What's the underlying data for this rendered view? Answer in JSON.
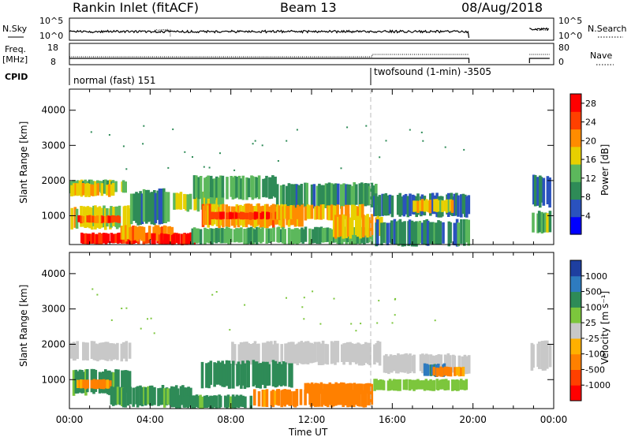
{
  "header": {
    "radar_label": "Rankin Inlet (fitACF)",
    "beam_label": "Beam 13",
    "date_label": "08/Aug/2018"
  },
  "panels": {
    "nsky": {
      "left_label": "N.Sky",
      "left_ticks": [
        "10^5",
        "10^0"
      ],
      "right_label": "N.Search",
      "right_ticks": [
        "10^5",
        "10^0"
      ]
    },
    "freq": {
      "left_label": "Freq.",
      "left_unit": "[MHz]",
      "left_ticks": [
        "18",
        "8"
      ],
      "right_label": "Nave",
      "right_ticks": [
        "80",
        "0"
      ]
    },
    "cpid": {
      "label": "CPID",
      "modes": [
        {
          "name": "normal (fast) 151",
          "start_hour": 0,
          "end_hour": 15
        },
        {
          "name": "twofsound (1-min) -3505",
          "start_hour": 15,
          "end_hour": 24
        }
      ]
    }
  },
  "chart_data": [
    {
      "type": "heatmap",
      "name": "power",
      "xlabel": "",
      "ylabel": "Slant Range [km]",
      "x_range_hours": [
        0,
        24
      ],
      "ylim": [
        180,
        4600
      ],
      "yticks": [
        "1000",
        "2000",
        "3000",
        "4000"
      ],
      "colorbar": {
        "label": "Power [dB]",
        "ticks": [
          "4",
          "8",
          "12",
          "16",
          "20",
          "24",
          "28"
        ],
        "range": [
          0,
          30
        ],
        "colors": [
          "#0000ff",
          "#2a52be",
          "#2e8b57",
          "#5cb85c",
          "#e8d000",
          "#ff8c00",
          "#ff4000",
          "#ff0000"
        ]
      },
      "data_gaps_hours": [
        [
          19.8,
          22.8
        ]
      ],
      "bands": [
        {
          "t0": 0.0,
          "t1": 2.8,
          "r0": 1650,
          "r1": 2000,
          "v": 13
        },
        {
          "t0": 0.0,
          "t1": 2.2,
          "r0": 1550,
          "r1": 1900,
          "v": 18
        },
        {
          "t0": 0.0,
          "t1": 3.0,
          "r0": 650,
          "r1": 1250,
          "v": 16
        },
        {
          "t0": 0.3,
          "t1": 2.5,
          "r0": 800,
          "r1": 1000,
          "v": 24
        },
        {
          "t0": 0.5,
          "t1": 6.2,
          "r0": 200,
          "r1": 500,
          "v": 27
        },
        {
          "t0": 2.5,
          "t1": 5.2,
          "r0": 300,
          "r1": 700,
          "v": 21
        },
        {
          "t0": 4.0,
          "t1": 6.2,
          "r0": 180,
          "r1": 480,
          "v": 29
        },
        {
          "t0": 3.0,
          "t1": 5.0,
          "r0": 800,
          "r1": 1700,
          "v": 9
        },
        {
          "t0": 5.0,
          "t1": 7.6,
          "r0": 1150,
          "r1": 1650,
          "v": 15
        },
        {
          "t0": 6.0,
          "t1": 10.2,
          "r0": 1500,
          "r1": 2100,
          "v": 12
        },
        {
          "t0": 6.5,
          "t1": 11.5,
          "r0": 700,
          "r1": 1300,
          "v": 20
        },
        {
          "t0": 7.0,
          "t1": 10.5,
          "r0": 900,
          "r1": 1100,
          "v": 25
        },
        {
          "t0": 6.0,
          "t1": 15.0,
          "r0": 220,
          "r1": 650,
          "v": 12
        },
        {
          "t0": 10.2,
          "t1": 15.2,
          "r0": 1250,
          "r1": 1900,
          "v": 10
        },
        {
          "t0": 10.0,
          "t1": 14.5,
          "r0": 900,
          "r1": 1300,
          "v": 19
        },
        {
          "t0": 13.0,
          "t1": 15.5,
          "r0": 400,
          "r1": 1000,
          "v": 18
        },
        {
          "t0": 15.0,
          "t1": 19.8,
          "r0": 1000,
          "r1": 1600,
          "v": 8
        },
        {
          "t0": 17.0,
          "t1": 19.0,
          "r0": 1100,
          "r1": 1450,
          "v": 17
        },
        {
          "t0": 15.0,
          "t1": 19.8,
          "r0": 180,
          "r1": 850,
          "v": 9
        },
        {
          "t0": 22.8,
          "t1": 23.8,
          "r0": 1300,
          "r1": 2100,
          "v": 7
        },
        {
          "t0": 22.8,
          "t1": 23.8,
          "r0": 500,
          "r1": 1100,
          "v": 13
        }
      ]
    },
    {
      "type": "heatmap",
      "name": "velocity",
      "xlabel": "Time UT",
      "ylabel": "Slant Range [km]",
      "x_range_hours": [
        0,
        24
      ],
      "xticks": [
        "00:00",
        "04:00",
        "08:00",
        "12:00",
        "16:00",
        "20:00",
        "00:00"
      ],
      "ylim": [
        180,
        4600
      ],
      "yticks": [
        "1000",
        "2000",
        "3000",
        "4000"
      ],
      "colorbar": {
        "label": "Velocity [m s⁻¹]",
        "ticks": [
          "1000",
          "500",
          "100",
          "25",
          "-25",
          "-100",
          "-500",
          "-1000"
        ],
        "colors": [
          "#1e3fa0",
          "#2e7bbf",
          "#2e8b57",
          "#7cc63c",
          "#c8c8c8",
          "#ffb000",
          "#ff8000",
          "#ff4000",
          "#ff0000"
        ]
      },
      "data_gaps_hours": [
        [
          19.8,
          22.8
        ]
      ],
      "bands": [
        {
          "t0": 0.0,
          "t1": 3.0,
          "r0": 1550,
          "r1": 2050,
          "v": 0
        },
        {
          "t0": 8.0,
          "t1": 15.5,
          "r0": 1450,
          "r1": 2050,
          "v": 0
        },
        {
          "t0": 15.5,
          "t1": 19.8,
          "r0": 1200,
          "r1": 1700,
          "v": 0
        },
        {
          "t0": 22.8,
          "t1": 23.8,
          "r0": 1300,
          "r1": 2050,
          "v": 0
        },
        {
          "t0": 0.0,
          "t1": 3.0,
          "r0": 600,
          "r1": 1250,
          "v": 150
        },
        {
          "t0": 0.3,
          "t1": 2.0,
          "r0": 750,
          "r1": 1000,
          "v": -150
        },
        {
          "t0": 2.0,
          "t1": 6.0,
          "r0": 250,
          "r1": 800,
          "v": 150
        },
        {
          "t0": 6.5,
          "t1": 11.0,
          "r0": 800,
          "r1": 1500,
          "v": 200
        },
        {
          "t0": 5.0,
          "t1": 9.0,
          "r0": 200,
          "r1": 550,
          "v": 150
        },
        {
          "t0": 9.0,
          "t1": 15.0,
          "r0": 250,
          "r1": 700,
          "v": -150
        },
        {
          "t0": 11.5,
          "t1": 15.0,
          "r0": 600,
          "r1": 900,
          "v": -200
        },
        {
          "t0": 15.0,
          "t1": 19.8,
          "r0": 700,
          "r1": 1000,
          "v": 60
        },
        {
          "t0": 17.5,
          "t1": 18.6,
          "r0": 1100,
          "r1": 1450,
          "v": 600
        },
        {
          "t0": 18.0,
          "t1": 19.5,
          "r0": 1100,
          "r1": 1350,
          "v": -150
        }
      ]
    }
  ]
}
